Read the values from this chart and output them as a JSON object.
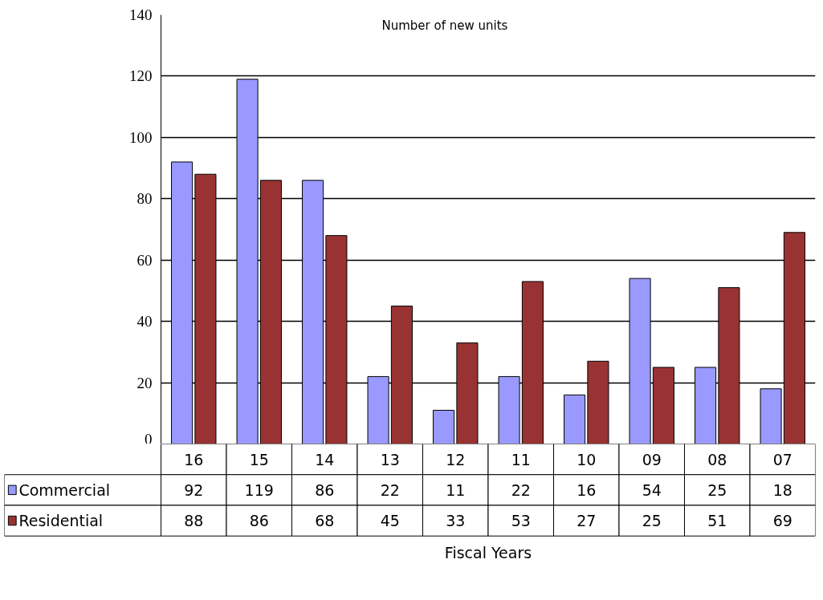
{
  "chart_data": {
    "type": "bar",
    "title": "Number of new units",
    "xlabel": "Fiscal Years",
    "categories": [
      "16",
      "15",
      "14",
      "13",
      "12",
      "11",
      "10",
      "09",
      "08",
      "07"
    ],
    "series": [
      {
        "name": "Commercial",
        "color": "#9999ff",
        "values": [
          92,
          119,
          86,
          22,
          11,
          22,
          16,
          54,
          25,
          18
        ]
      },
      {
        "name": "Residential",
        "color": "#993333",
        "values": [
          88,
          86,
          68,
          45,
          33,
          53,
          27,
          25,
          51,
          69
        ]
      }
    ],
    "ylim": [
      0,
      140
    ],
    "yticks": [
      0,
      20,
      40,
      60,
      80,
      100,
      120,
      140
    ],
    "grid": "y",
    "legend": "left",
    "data_labels": true
  }
}
